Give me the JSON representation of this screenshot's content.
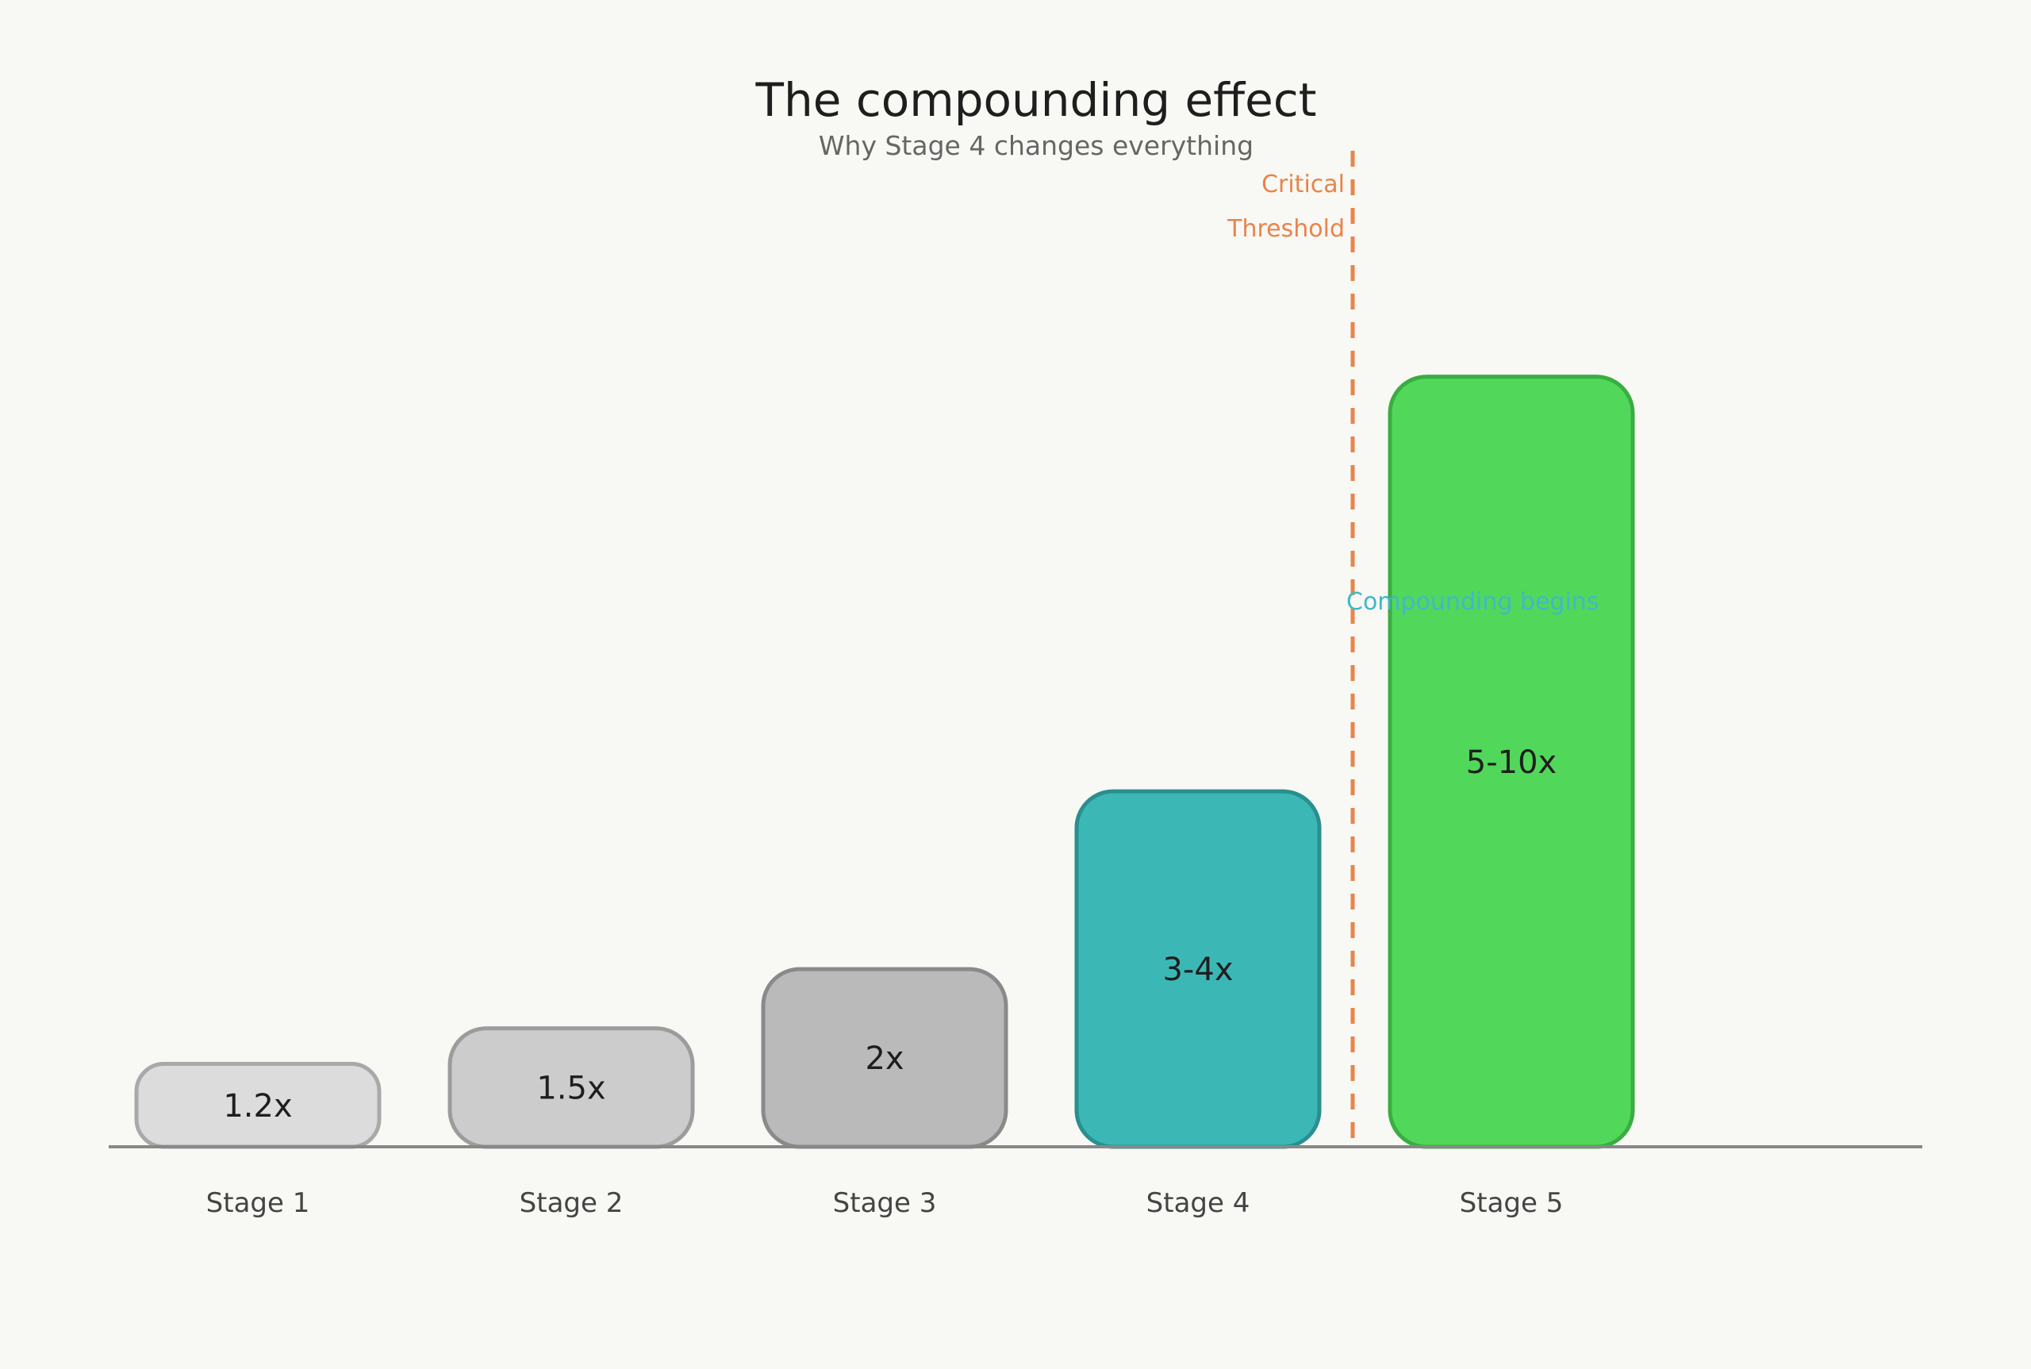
{
  "chart_data": {
    "type": "bar",
    "title": "The compounding effect",
    "subtitle": "Why Stage 4 changes everything",
    "categories": [
      "Stage 1",
      "Stage 2",
      "Stage 3",
      "Stage 4",
      "Stage 5"
    ],
    "values": [
      1.2,
      1.5,
      2,
      3.5,
      7
    ],
    "value_labels": [
      "1.2x",
      "1.5x",
      "2x",
      "3-4x",
      "5-10x"
    ],
    "colors": [
      "#dcdcdc",
      "#cccccc",
      "#bababa",
      "#3bb8b6",
      "#51d85a"
    ],
    "stroke_colors": [
      "#a9a9a9",
      "#9c9c9c",
      "#8a8a8a",
      "#2a8f8e",
      "#3aad42"
    ],
    "ylim": [
      0.5,
      7.5
    ],
    "grid": false,
    "threshold": {
      "after_category": "Stage 4",
      "label_lines": [
        "Critical",
        "Threshold"
      ],
      "color": "#e8844a"
    },
    "annotation": {
      "text": "Compounding begins",
      "color": "#41b8c8"
    }
  }
}
